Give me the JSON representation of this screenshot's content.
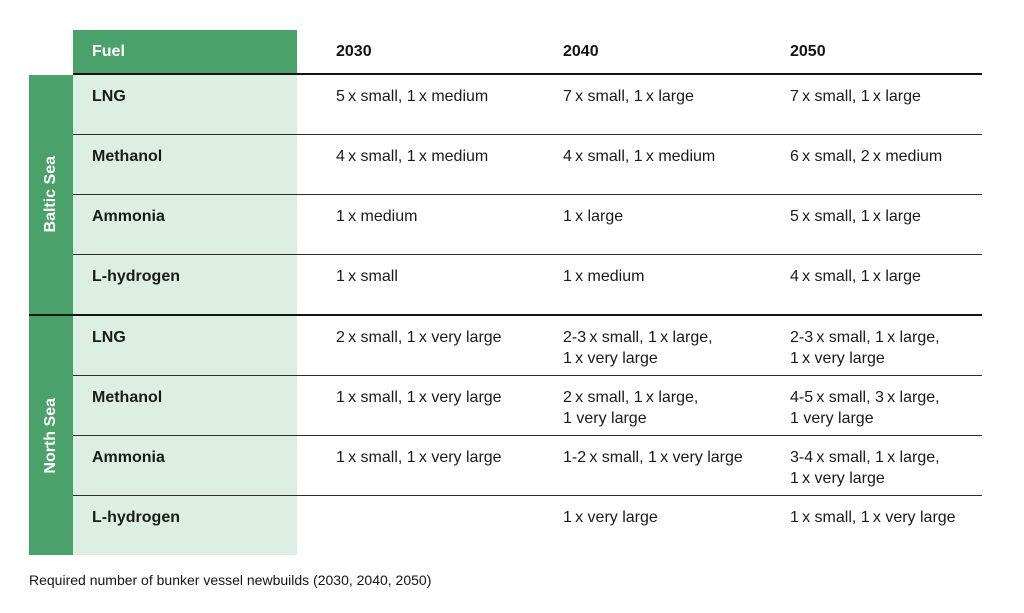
{
  "colors": {
    "header_green": "#4ba16a",
    "cell_light_green": "#ddeee3",
    "thick_line": "#141414",
    "thin_line": "#2e2e2e",
    "text": "#1a1a1a",
    "header_fuel_text": "#ffffff"
  },
  "table": {
    "header": {
      "fuel_label": "Fuel",
      "years": [
        "2030",
        "2040",
        "2050"
      ]
    },
    "groups": [
      {
        "label": "Baltic Sea",
        "rows": [
          {
            "fuel": "LNG",
            "values": [
              "5 x small, 1 x medium",
              "7 x small, 1 x large",
              "7 x small, 1 x large"
            ]
          },
          {
            "fuel": "Methanol",
            "values": [
              "4 x small, 1 x medium",
              "4 x small, 1 x medium",
              "6 x small, 2 x medium"
            ]
          },
          {
            "fuel": "Ammonia",
            "values": [
              "1 x medium",
              "1 x large",
              "5 x small, 1 x large"
            ]
          },
          {
            "fuel": "L-hydrogen",
            "values": [
              "1 x small",
              "1 x medium",
              "4 x small, 1 x large"
            ]
          }
        ]
      },
      {
        "label": "North Sea",
        "rows": [
          {
            "fuel": "LNG",
            "values": [
              "2 x small, 1 x very large",
              "2-3 x small, 1 x large,\n1 x very large",
              "2-3 x small, 1 x large,\n1 x very large"
            ]
          },
          {
            "fuel": "Methanol",
            "values": [
              "1 x small, 1 x very large",
              "2 x small, 1 x large,\n1 very large",
              "4-5 x small, 3 x large,\n1 very large"
            ]
          },
          {
            "fuel": "Ammonia",
            "values": [
              "1 x small, 1 x very large",
              "1-2 x small, 1 x very large",
              "3-4 x small, 1 x large,\n1 x very large"
            ]
          },
          {
            "fuel": "L-hydrogen",
            "values": [
              "",
              "1 x very large",
              "1 x small, 1 x very large"
            ]
          }
        ]
      }
    ]
  },
  "caption": "Required number of bunker vessel newbuilds (2030, 2040, 2050)"
}
